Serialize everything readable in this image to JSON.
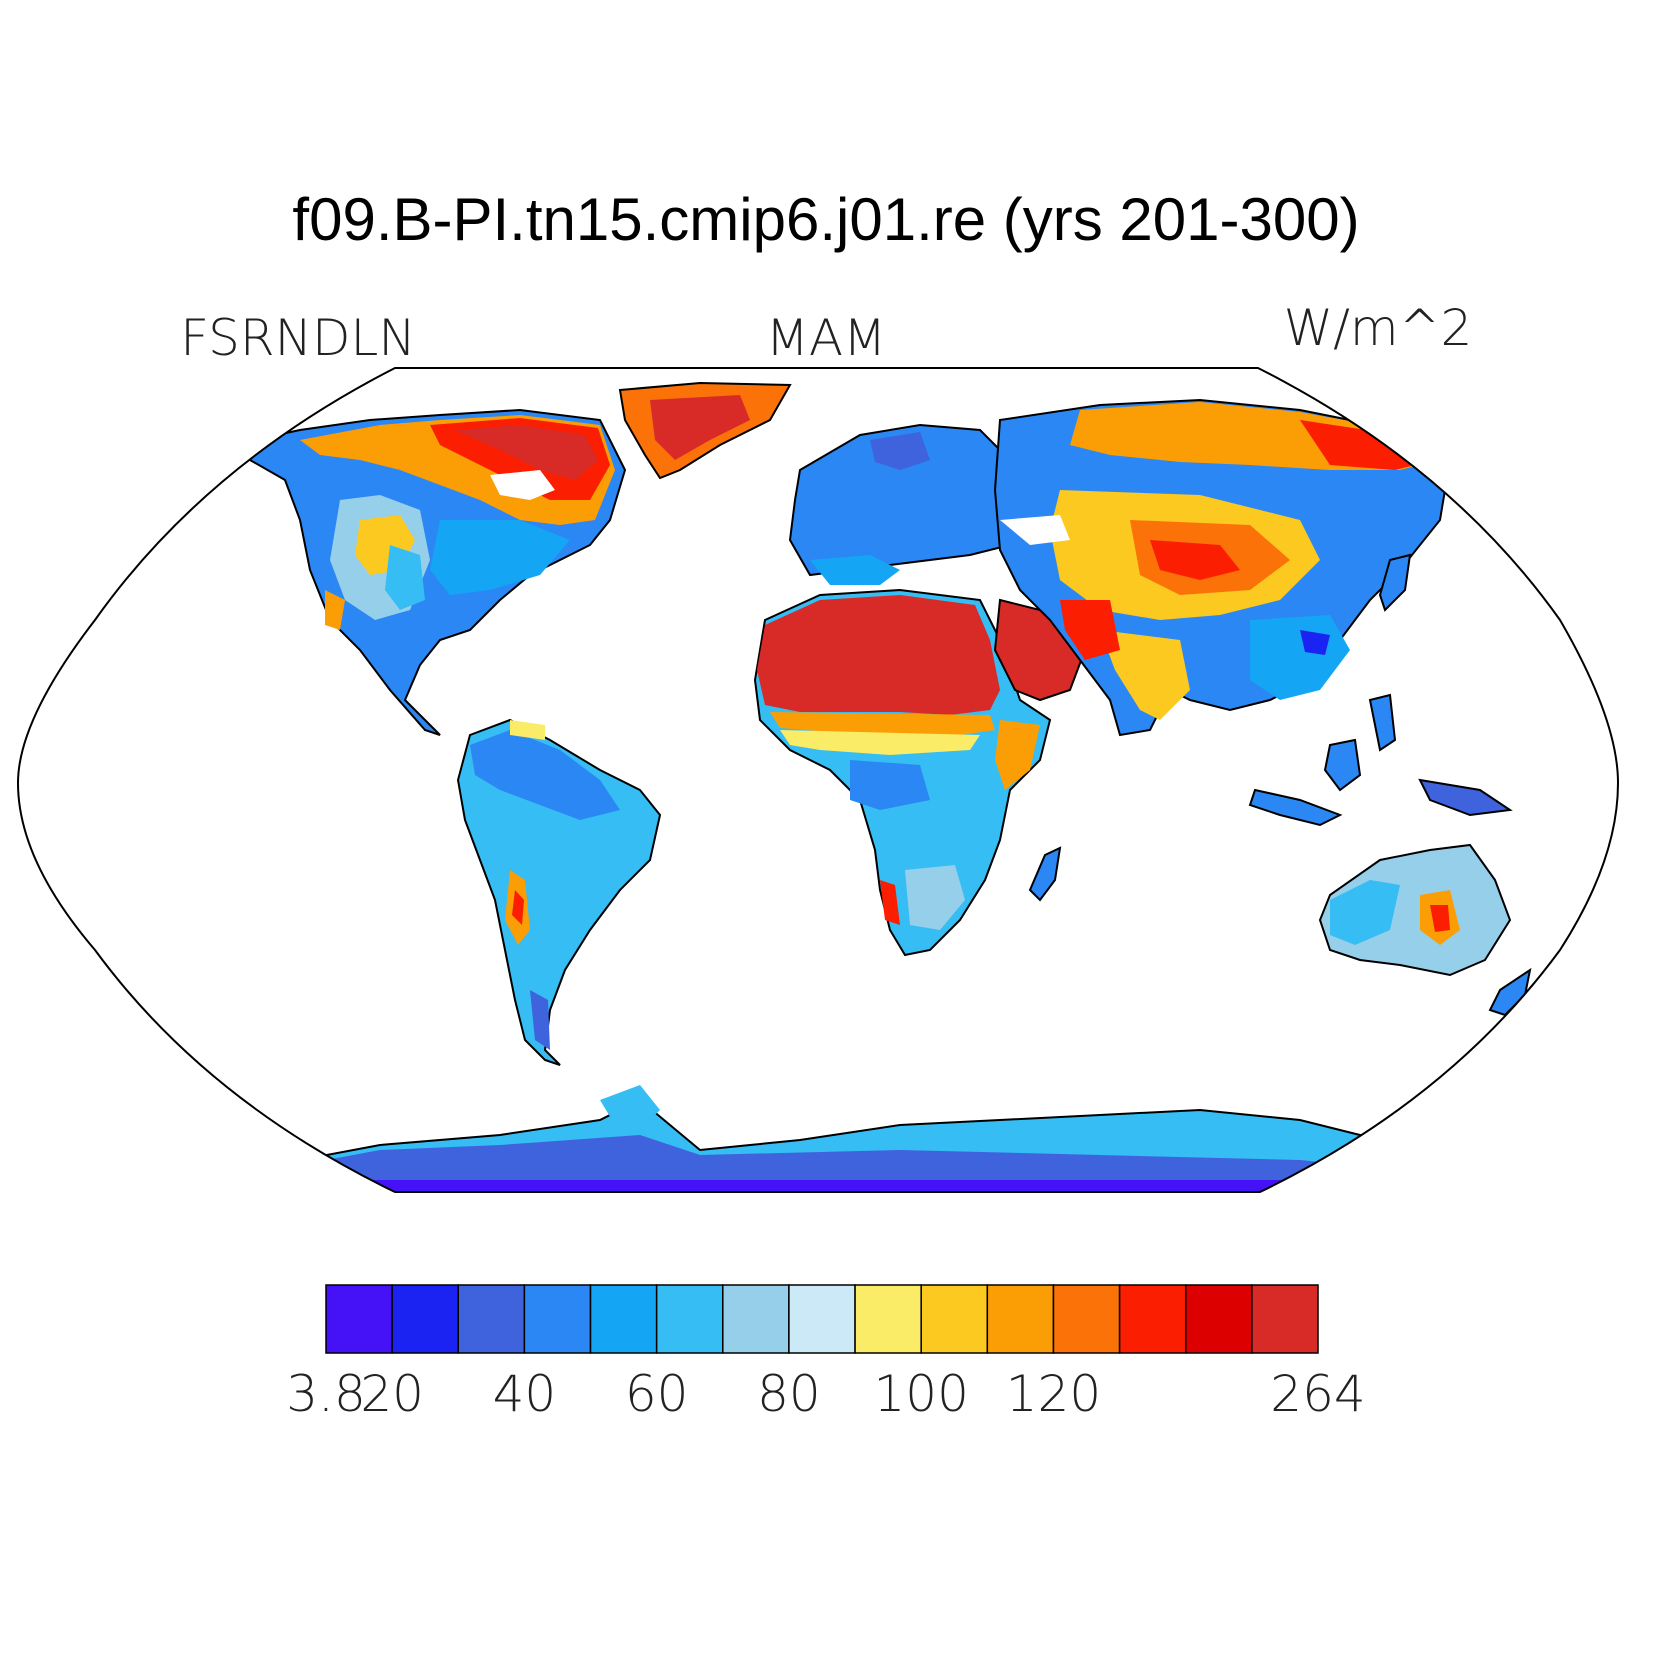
{
  "title": "f09.B-PI.tn15.cmip6.j01.re (yrs 201-300)",
  "left_label": "FSRNDLN",
  "center_label": "MAM",
  "right_label": "W/m^2",
  "colorbar": {
    "colors": [
      "#4512f7",
      "#1a23f2",
      "#3f63dd",
      "#2b87f3",
      "#14a6f5",
      "#35bdf4",
      "#96cfea",
      "#cce9f7",
      "#fbec68",
      "#fbc920",
      "#fb9e06",
      "#fb7209",
      "#fb1e00",
      "#dd0000",
      "#d82b28"
    ],
    "tick_labels": [
      {
        "index": 0,
        "text": "3.8"
      },
      {
        "index": 1,
        "text": "20"
      },
      {
        "index": 3,
        "text": "40"
      },
      {
        "index": 5,
        "text": "60"
      },
      {
        "index": 7,
        "text": "80"
      },
      {
        "index": 9,
        "text": "100"
      },
      {
        "index": 11,
        "text": "120"
      },
      {
        "index": 15,
        "text": "264"
      }
    ]
  },
  "map": {
    "projection": "robinson",
    "land_outline_color": "#000000",
    "ocean_color": "#ffffff"
  }
}
